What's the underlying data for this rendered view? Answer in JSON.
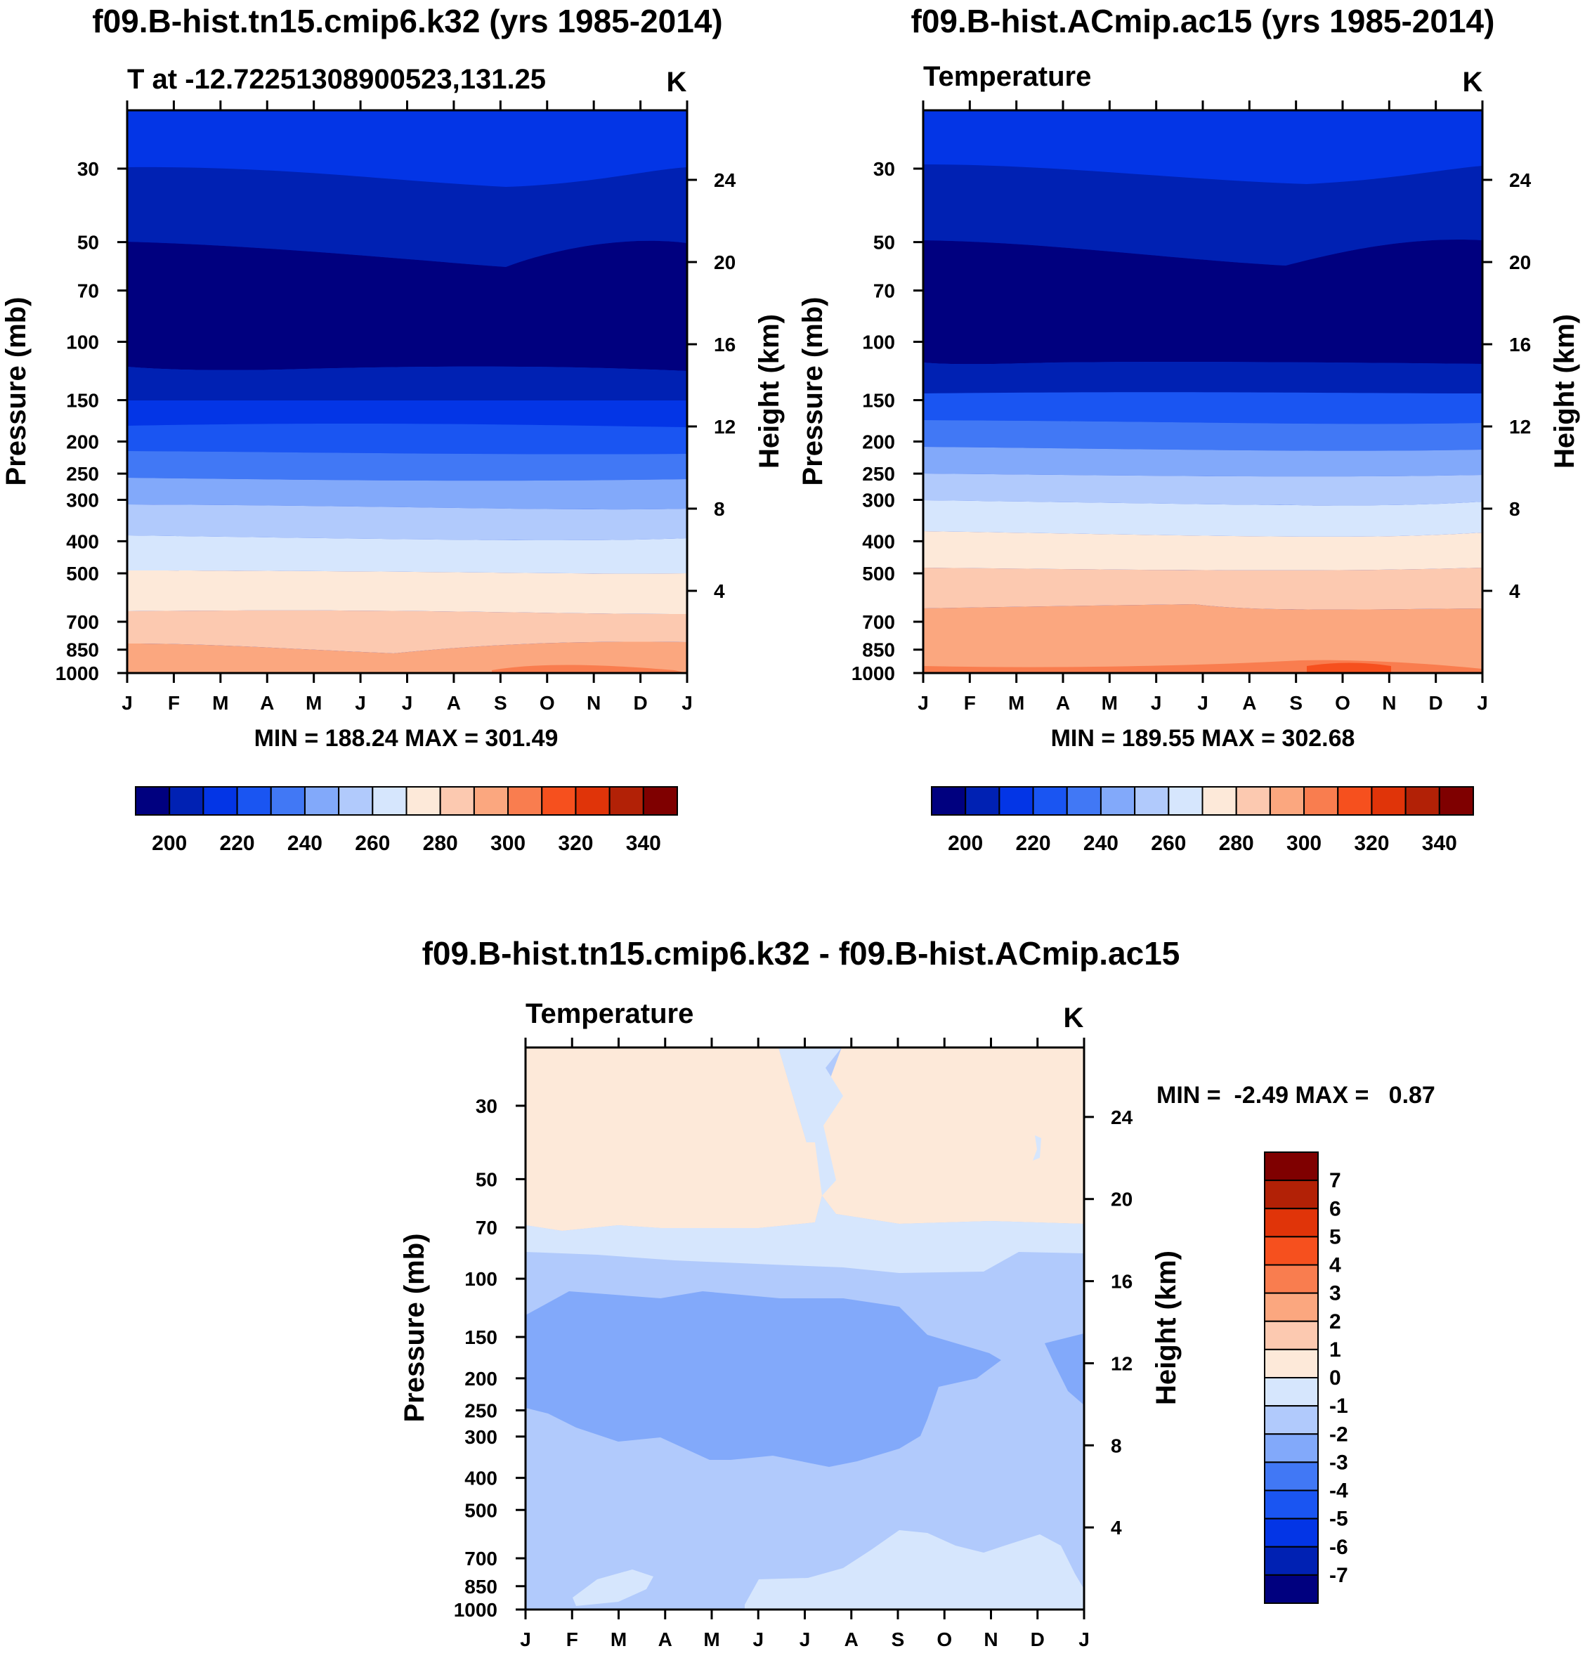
{
  "colors": {
    "abs_scale": [
      "#00007f",
      "#0021b3",
      "#0335e6",
      "#1a55f2",
      "#4178f5",
      "#82a9fa",
      "#b1cafc",
      "#d6e6fd",
      "#fde9d9",
      "#fcc9b0",
      "#fba77f",
      "#f97d4f",
      "#f6501e",
      "#e03409",
      "#b22106",
      "#7f0000"
    ],
    "diff_scale": [
      "#00007f",
      "#0021b3",
      "#0335e6",
      "#1a55f2",
      "#4178f5",
      "#82a9fa",
      "#b1cafc",
      "#d6e6fd",
      "#fde9d9",
      "#fcc9b0",
      "#fba77f",
      "#f97d4f",
      "#f6501e",
      "#e03409",
      "#b22106",
      "#7f0000"
    ]
  },
  "pressure_ticks": [
    "30",
    "50",
    "70",
    "100",
    "150",
    "200",
    "250",
    "300",
    "400",
    "500",
    "700",
    "850",
    "1000"
  ],
  "height_ticks": [
    "24",
    "20",
    "16",
    "12",
    "8",
    "4"
  ],
  "month_ticks": [
    "J",
    "F",
    "M",
    "A",
    "M",
    "J",
    "J",
    "A",
    "S",
    "O",
    "N",
    "D",
    "J"
  ],
  "axis_labels": {
    "pressure": "Pressure (mb)",
    "height": "Height (km)"
  },
  "units": "K",
  "panels": [
    {
      "title": "f09.B-hist.tn15.cmip6.k32 (yrs 1985-2014)",
      "subtitle": "T at -12.72251308900523,131.25",
      "stats": "MIN = 188.24 MAX = 301.49",
      "colorbar_labels": [
        "200",
        "220",
        "240",
        "260",
        "280",
        "300",
        "320",
        "340"
      ]
    },
    {
      "title": "f09.B-hist.ACmip.ac15 (yrs 1985-2014)",
      "subtitle": "Temperature",
      "stats": "MIN = 189.55 MAX = 302.68",
      "colorbar_labels": [
        "200",
        "220",
        "240",
        "260",
        "280",
        "300",
        "320",
        "340"
      ]
    },
    {
      "title": "f09.B-hist.tn15.cmip6.k32 - f09.B-hist.ACmip.ac15",
      "subtitle": "Temperature",
      "stats": "MIN =  -2.49 MAX =   0.87",
      "colorbar_labels": [
        "7",
        "6",
        "5",
        "4",
        "3",
        "2",
        "1",
        "0",
        "-1",
        "-2",
        "-3",
        "-4",
        "-5",
        "-6",
        "-7"
      ]
    }
  ],
  "chart_data": [
    {
      "type": "heatmap",
      "title": "f09.B-hist.tn15.cmip6.k32 (yrs 1985-2014)",
      "subtitle": "T at -12.72251308900523,131.25",
      "xlabel": "",
      "ylabel": "Pressure (mb)",
      "y2label": "Height (km)",
      "x": [
        "J",
        "F",
        "M",
        "A",
        "M",
        "J",
        "J",
        "A",
        "S",
        "O",
        "N",
        "D",
        "J"
      ],
      "ylim": [
        1000,
        20
      ],
      "contour_levels": [
        190,
        200,
        210,
        220,
        230,
        240,
        250,
        260,
        270,
        280,
        290,
        300,
        310,
        320,
        330,
        340,
        350
      ],
      "min": 188.24,
      "max": 301.49,
      "bands_by_pressure": [
        {
          "p_top": 20,
          "p_bottom": 36,
          "value": 205
        },
        {
          "p_top": 36,
          "p_bottom": 62,
          "value": 195
        },
        {
          "p_top": 62,
          "p_bottom": 138,
          "value": 189
        },
        {
          "p_top": 138,
          "p_bottom": 168,
          "value": 205
        },
        {
          "p_top": 168,
          "p_bottom": 210,
          "value": 215
        },
        {
          "p_top": 210,
          "p_bottom": 265,
          "value": 225
        },
        {
          "p_top": 265,
          "p_bottom": 340,
          "value": 235
        },
        {
          "p_top": 340,
          "p_bottom": 430,
          "value": 245
        },
        {
          "p_top": 430,
          "p_bottom": 540,
          "value": 255
        },
        {
          "p_top": 540,
          "p_bottom": 690,
          "value": 265
        },
        {
          "p_top": 690,
          "p_bottom": 830,
          "value": 275
        },
        {
          "p_top": 830,
          "p_bottom": 1000,
          "value": 285
        }
      ]
    },
    {
      "type": "heatmap",
      "title": "f09.B-hist.ACmip.ac15 (yrs 1985-2014)",
      "subtitle": "Temperature",
      "xlabel": "",
      "ylabel": "Pressure (mb)",
      "y2label": "Height (km)",
      "x": [
        "J",
        "F",
        "M",
        "A",
        "M",
        "J",
        "J",
        "A",
        "S",
        "O",
        "N",
        "D",
        "J"
      ],
      "ylim": [
        1000,
        20
      ],
      "contour_levels": [
        190,
        200,
        210,
        220,
        230,
        240,
        250,
        260,
        270,
        280,
        290,
        300,
        310,
        320,
        330,
        340,
        350
      ],
      "min": 189.55,
      "max": 302.68,
      "bands_by_pressure": [
        {
          "p_top": 20,
          "p_bottom": 35,
          "value": 205
        },
        {
          "p_top": 35,
          "p_bottom": 62,
          "value": 195
        },
        {
          "p_top": 62,
          "p_bottom": 130,
          "value": 189
        },
        {
          "p_top": 130,
          "p_bottom": 160,
          "value": 205
        },
        {
          "p_top": 160,
          "p_bottom": 200,
          "value": 215
        },
        {
          "p_top": 200,
          "p_bottom": 255,
          "value": 225
        },
        {
          "p_top": 255,
          "p_bottom": 330,
          "value": 235
        },
        {
          "p_top": 330,
          "p_bottom": 420,
          "value": 245
        },
        {
          "p_top": 420,
          "p_bottom": 520,
          "value": 255
        },
        {
          "p_top": 520,
          "p_bottom": 680,
          "value": 265
        },
        {
          "p_top": 680,
          "p_bottom": 820,
          "value": 275
        },
        {
          "p_top": 820,
          "p_bottom": 1000,
          "value": 285
        }
      ]
    },
    {
      "type": "heatmap",
      "title": "f09.B-hist.tn15.cmip6.k32 - f09.B-hist.ACmip.ac15",
      "subtitle": "Temperature",
      "xlabel": "",
      "ylabel": "Pressure (mb)",
      "y2label": "Height (km)",
      "x": [
        "J",
        "F",
        "M",
        "A",
        "M",
        "J",
        "J",
        "A",
        "S",
        "O",
        "N",
        "D",
        "J"
      ],
      "ylim": [
        1000,
        20
      ],
      "contour_levels": [
        -7,
        -6,
        -5,
        -4,
        -3,
        -2,
        -1,
        0,
        1,
        2,
        3,
        4,
        5,
        6,
        7
      ],
      "min": -2.49,
      "max": 0.87,
      "bands_by_pressure": [
        {
          "p_top": 20,
          "p_bottom": 80,
          "value": 0.5
        },
        {
          "p_top": 80,
          "p_bottom": 100,
          "value": -0.5
        },
        {
          "p_top": 100,
          "p_bottom": 145,
          "value": -1.5
        },
        {
          "p_top": 145,
          "p_bottom": 330,
          "value": -2.3
        },
        {
          "p_top": 330,
          "p_bottom": 700,
          "value": -1.5
        },
        {
          "p_top": 700,
          "p_bottom": 1000,
          "value": -0.7
        }
      ]
    }
  ]
}
